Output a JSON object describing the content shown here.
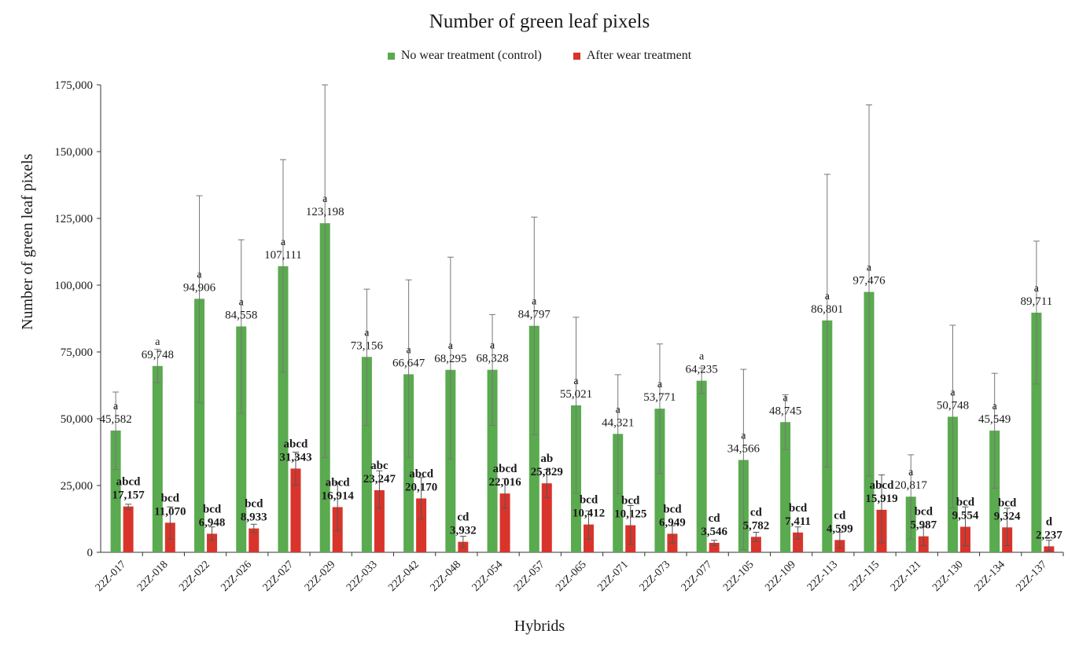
{
  "chart_data": {
    "type": "bar",
    "title": "Number of green leaf pixels",
    "xlabel": "Hybrids",
    "ylabel": "Number of green leaf pixels",
    "ylim": [
      0,
      175000
    ],
    "yticks": [
      "0",
      "25,000",
      "50,000",
      "75,000",
      "100,000",
      "125,000",
      "150,000",
      "175,000"
    ],
    "legend_position": "top-center",
    "categories": [
      "22Z-017",
      "22Z-018",
      "22Z-022",
      "22Z-026",
      "22Z-027",
      "22Z-029",
      "22Z-033",
      "22Z-042",
      "22Z-048",
      "22Z-054",
      "22Z-057",
      "22Z-065",
      "22Z-071",
      "22Z-073",
      "22Z-077",
      "22Z-105",
      "22Z-109",
      "22Z-113",
      "22Z-115",
      "22Z-121",
      "22Z-130",
      "22Z-134",
      "22Z-137"
    ],
    "series": [
      {
        "name": "No wear treatment (control)",
        "color": "#5aaa4f",
        "values": [
          45582,
          69748,
          94906,
          84558,
          107111,
          123198,
          73156,
          66647,
          68295,
          68328,
          84797,
          55021,
          44321,
          53771,
          64235,
          34566,
          48745,
          86801,
          97476,
          20817,
          50748,
          45549,
          89711
        ],
        "labels": [
          "45,582",
          "69,748",
          "94,906",
          "84,558",
          "107,111",
          "123,198",
          "73,156",
          "66,647",
          "68,295",
          "68,328",
          "84,797",
          "55,021",
          "44,321",
          "53,771",
          "64,235",
          "34,566",
          "48,745",
          "86,801",
          "97,476",
          "20,817",
          "50,748",
          "45,549",
          "89,711"
        ],
        "letters": [
          "a",
          "a",
          "a",
          "a",
          "a",
          "a",
          "a",
          "a",
          "a",
          "a",
          "a",
          "a",
          "a",
          "a",
          "a",
          "a",
          "a",
          "a",
          "a",
          "a",
          "a",
          "a",
          "a"
        ],
        "error_low": [
          31000,
          63500,
          56000,
          52000,
          67500,
          35500,
          47500,
          35500,
          35000,
          47500,
          44000,
          22000,
          22000,
          29500,
          59500,
          1000,
          38500,
          32000,
          28500,
          5000,
          16500,
          24000,
          63000
        ],
        "error_high": [
          60000,
          76000,
          133500,
          117000,
          147000,
          175000,
          98500,
          102000,
          110500,
          89000,
          125500,
          88000,
          66500,
          78000,
          69000,
          68500,
          59000,
          141500,
          167500,
          36500,
          85000,
          67000,
          116500
        ]
      },
      {
        "name": "After wear treatment",
        "color": "#d9342b",
        "values": [
          17157,
          11070,
          6948,
          8933,
          31343,
          16914,
          23247,
          20170,
          3932,
          22016,
          25829,
          10412,
          10125,
          6949,
          3546,
          5782,
          7411,
          4599,
          15919,
          5987,
          9554,
          9324,
          2237
        ],
        "labels": [
          "17,157",
          "11,070",
          "6,948",
          "8,933",
          "31,343",
          "16,914",
          "23,247",
          "20,170",
          "3,932",
          "22,016",
          "25,829",
          "10,412",
          "10,125",
          "6,949",
          "3,546",
          "5,782",
          "7,411",
          "4,599",
          "15,919",
          "5,987",
          "9,554",
          "9,324",
          "2,237"
        ],
        "letters": [
          "abcd",
          "bcd",
          "bcd",
          "bcd",
          "abcd",
          "abcd",
          "abc",
          "abcd",
          "cd",
          "abcd",
          "ab",
          "bcd",
          "bcd",
          "bcd",
          "cd",
          "cd",
          "bcd",
          "cd",
          "abcd",
          "bcd",
          "bcd",
          "bcd",
          "d"
        ],
        "error_low": [
          16000,
          5000,
          4500,
          7500,
          25000,
          8000,
          16500,
          12500,
          1800,
          16500,
          20500,
          5000,
          3000,
          3500,
          2500,
          4000,
          5000,
          1500,
          3500,
          2500,
          2500,
          2500,
          500
        ],
        "error_high": [
          18000,
          17000,
          9500,
          10500,
          37500,
          26000,
          30500,
          28000,
          6000,
          27500,
          31000,
          15500,
          17500,
          10000,
          4500,
          7500,
          9500,
          7500,
          29000,
          9500,
          17000,
          16500,
          4500
        ]
      }
    ]
  }
}
